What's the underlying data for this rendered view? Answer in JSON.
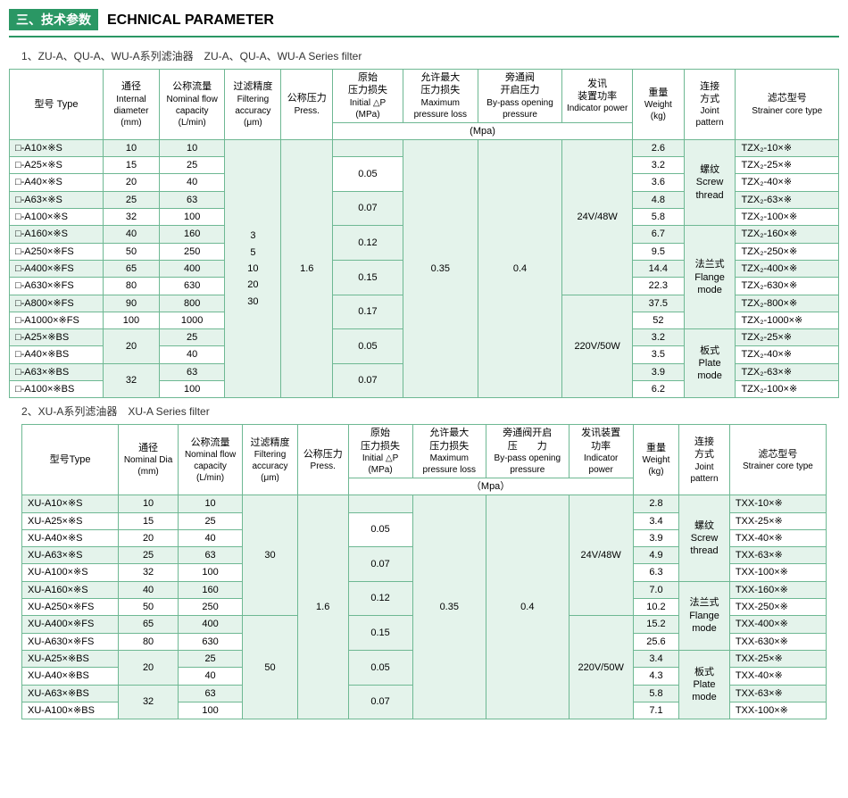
{
  "section": {
    "cn": "三、技术参数",
    "en": "ECHNICAL PARAMETER"
  },
  "sub1": "1、ZU-A、QU-A、WU-A系列滤油器　ZU-A、QU-A、WU-A Series filter",
  "sub2": "2、XU-A系列滤油器　XU-A Series filter",
  "headers": {
    "type_cn": "型号 Type",
    "type_cn2": "型号Type",
    "dia_cn": "通径",
    "dia_en": "Internal diameter",
    "dia_en2": "Nominal Dia",
    "dia_unit": "(mm)",
    "flow_cn": "公称流量",
    "flow_en": "Nominal flow capacity",
    "flow_unit": "(L/min)",
    "filt_cn": "过滤精度",
    "filt_en": "Filtering accuracy",
    "filt_unit": "(μm)",
    "press_cn": "公称压力",
    "press_en": "Press.",
    "init_cn": "原始",
    "init_cn2": "压力损失",
    "init_en": "Initial △P",
    "init_unit": "(MPa)",
    "max_cn": "允许最大",
    "max_cn2": "压力损失",
    "max_en": "Maximum pressure loss",
    "bypass_cn": "旁通阀",
    "bypass_cn2": "开启压力",
    "bypass_cn_t2a": "旁通阀开启",
    "bypass_cn_t2b": "压　　力",
    "bypass_en": "By-pass opening pressure",
    "ind_cn": "发讯",
    "ind_cn2": "装置功率",
    "ind_cn_t2a": "发讯装置",
    "ind_cn_t2b": "功率",
    "ind_en": "Indicator power",
    "weight_cn": "重量",
    "weight_en": "Weight",
    "weight_unit": "(kg)",
    "joint_cn": "连接",
    "joint_cn2": "方式",
    "joint_en": "Joint pattern",
    "core_cn": "滤芯型号",
    "core_en": "Strainer core type",
    "mpa": "(Mpa)",
    "mpa2": "（Mpa）"
  },
  "t1": {
    "filt": "3\n5\n10\n20\n30",
    "press": "1.6",
    "maxloss": "0.35",
    "bypass": "0.4",
    "ind1": "24V/48W",
    "ind2": "220V/50W",
    "joint1_cn": "螺纹",
    "joint1_en": "Screw thread",
    "joint2_cn": "法兰式",
    "joint2_en": "Flange mode",
    "joint3_cn": "板式",
    "joint3_en": "Plate mode",
    "rows": [
      {
        "m": "□-A10×※S",
        "d": "10",
        "f": "10",
        "w": "2.6",
        "c": "TZX₂-10×※"
      },
      {
        "m": "□-A25×※S",
        "d": "15",
        "f": "25",
        "w": "3.2",
        "c": "TZX₂-25×※"
      },
      {
        "m": "□-A40×※S",
        "d": "20",
        "f": "40",
        "w": "3.6",
        "c": "TZX₂-40×※"
      },
      {
        "m": "□-A63×※S",
        "d": "25",
        "f": "63",
        "w": "4.8",
        "c": "TZX₂-63×※"
      },
      {
        "m": "□-A100×※S",
        "d": "32",
        "f": "100",
        "w": "5.8",
        "c": "TZX₂-100×※"
      },
      {
        "m": "□-A160×※S",
        "d": "40",
        "f": "160",
        "w": "6.7",
        "c": "TZX₂-160×※"
      },
      {
        "m": "□-A250×※FS",
        "d": "50",
        "f": "250",
        "w": "9.5",
        "c": "TZX₂-250×※"
      },
      {
        "m": "□-A400×※FS",
        "d": "65",
        "f": "400",
        "w": "14.4",
        "c": "TZX₂-400×※"
      },
      {
        "m": "□-A630×※FS",
        "d": "80",
        "f": "630",
        "w": "22.3",
        "c": "TZX₂-630×※"
      },
      {
        "m": "□-A800×※FS",
        "d": "90",
        "f": "800",
        "w": "37.5",
        "c": "TZX₂-800×※"
      },
      {
        "m": "□-A1000×※FS",
        "d": "100",
        "f": "1000",
        "w": "52",
        "c": "TZX₂-1000×※"
      },
      {
        "m": "□-A25×※BS",
        "d": "20",
        "f": "25",
        "w": "3.2",
        "c": "TZX₂-25×※"
      },
      {
        "m": "□-A40×※BS",
        "d": "",
        "f": "40",
        "w": "3.5",
        "c": "TZX₂-40×※"
      },
      {
        "m": "□-A63×※BS",
        "d": "32",
        "f": "63",
        "w": "3.9",
        "c": "TZX₂-63×※"
      },
      {
        "m": "□-A100×※BS",
        "d": "",
        "f": "100",
        "w": "6.2",
        "c": "TZX₂-100×※"
      }
    ],
    "init": [
      "0.05",
      "0.07",
      "0.12",
      "0.15",
      "0.17",
      "0.05",
      "0.07"
    ]
  },
  "t2": {
    "filt1": "30",
    "filt2": "50",
    "press": "1.6",
    "maxloss": "0.35",
    "bypass": "0.4",
    "ind1": "24V/48W",
    "ind2": "220V/50W",
    "joint1_cn": "螺纹",
    "joint1_en": "Screw thread",
    "joint2_cn": "法兰式",
    "joint2_en": "Flange mode",
    "joint3_cn": "板式",
    "joint3_en": "Plate mode",
    "rows": [
      {
        "m": "XU-A10×※S",
        "d": "10",
        "f": "10",
        "w": "2.8",
        "c": "TXX-10×※"
      },
      {
        "m": "XU-A25×※S",
        "d": "15",
        "f": "25",
        "w": "3.4",
        "c": "TXX-25×※"
      },
      {
        "m": "XU-A40×※S",
        "d": "20",
        "f": "40",
        "w": "3.9",
        "c": "TXX-40×※"
      },
      {
        "m": "XU-A63×※S",
        "d": "25",
        "f": "63",
        "w": "4.9",
        "c": "TXX-63×※"
      },
      {
        "m": "XU-A100×※S",
        "d": "32",
        "f": "100",
        "w": "6.3",
        "c": "TXX-100×※"
      },
      {
        "m": "XU-A160×※S",
        "d": "40",
        "f": "160",
        "w": "7.0",
        "c": "TXX-160×※"
      },
      {
        "m": "XU-A250×※FS",
        "d": "50",
        "f": "250",
        "w": "10.2",
        "c": "TXX-250×※"
      },
      {
        "m": "XU-A400×※FS",
        "d": "65",
        "f": "400",
        "w": "15.2",
        "c": "TXX-400×※"
      },
      {
        "m": "XU-A630×※FS",
        "d": "80",
        "f": "630",
        "w": "25.6",
        "c": "TXX-630×※"
      },
      {
        "m": "XU-A25×※BS",
        "d": "20",
        "f": "25",
        "w": "3.4",
        "c": "TXX-25×※"
      },
      {
        "m": "XU-A40×※BS",
        "d": "",
        "f": "40",
        "w": "4.3",
        "c": "TXX-40×※"
      },
      {
        "m": "XU-A63×※BS",
        "d": "32",
        "f": "63",
        "w": "5.8",
        "c": "TXX-63×※"
      },
      {
        "m": "XU-A100×※BS",
        "d": "",
        "f": "100",
        "w": "7.1",
        "c": "TXX-100×※"
      }
    ],
    "init": [
      "0.05",
      "0.07",
      "0.12",
      "0.15",
      "0.05",
      "0.07"
    ]
  },
  "colors": {
    "accent": "#2a9764",
    "border": "#6eb893",
    "alt": "#e4f3eb",
    "bg": "#ffffff"
  }
}
